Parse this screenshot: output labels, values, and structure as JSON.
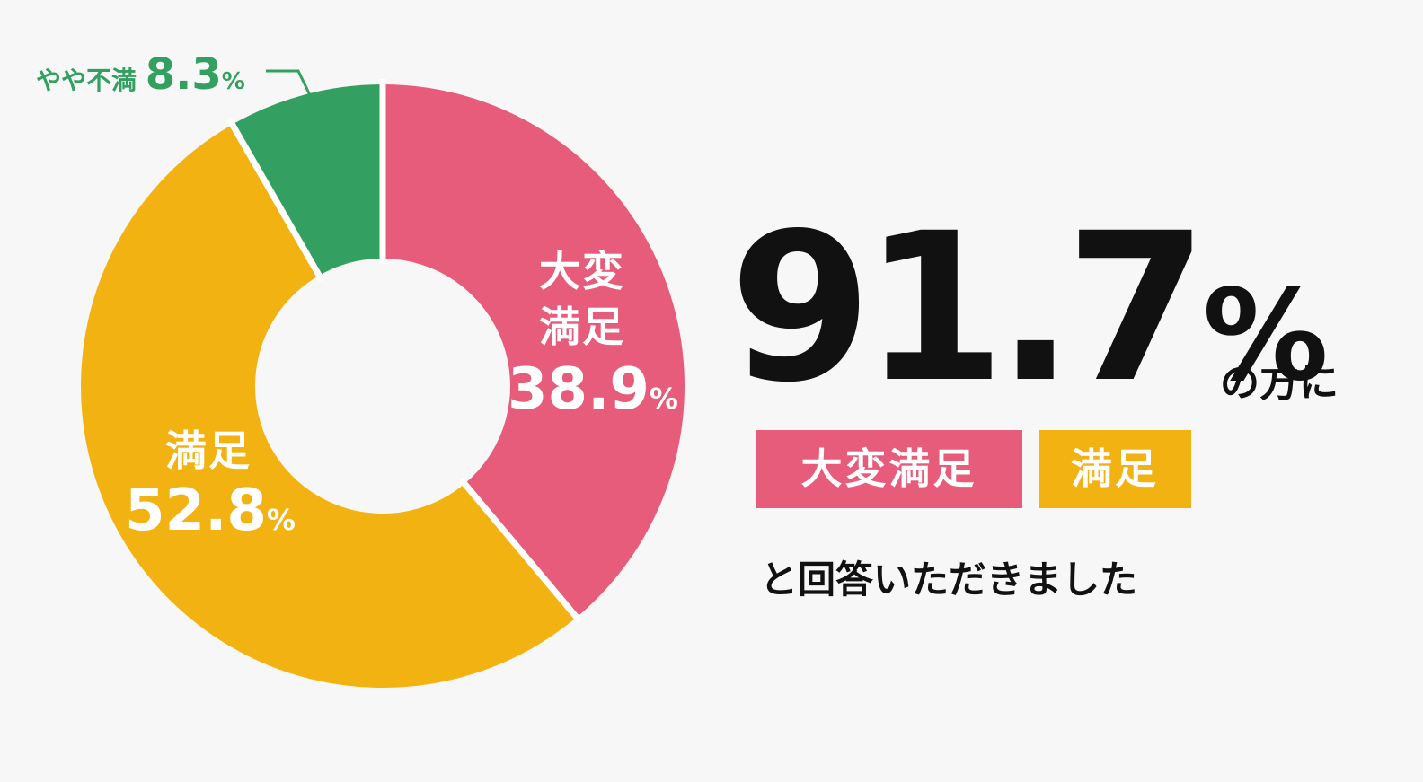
{
  "chart_data": {
    "type": "pie",
    "style": "donut",
    "categories": [
      "大変満足",
      "満足",
      "やや不満"
    ],
    "values": [
      38.9,
      52.8,
      8.3
    ],
    "unit": "%",
    "colors": [
      "#e75c7a",
      "#f2b212",
      "#33a062"
    ],
    "label_color": "#ffffff",
    "outside_label_color": "#33a062"
  },
  "summary": {
    "value": "91.7",
    "unit": "%",
    "suffix": "の方に",
    "tags": [
      "大変満足",
      "満足"
    ],
    "caption": "と回答いただきました"
  }
}
